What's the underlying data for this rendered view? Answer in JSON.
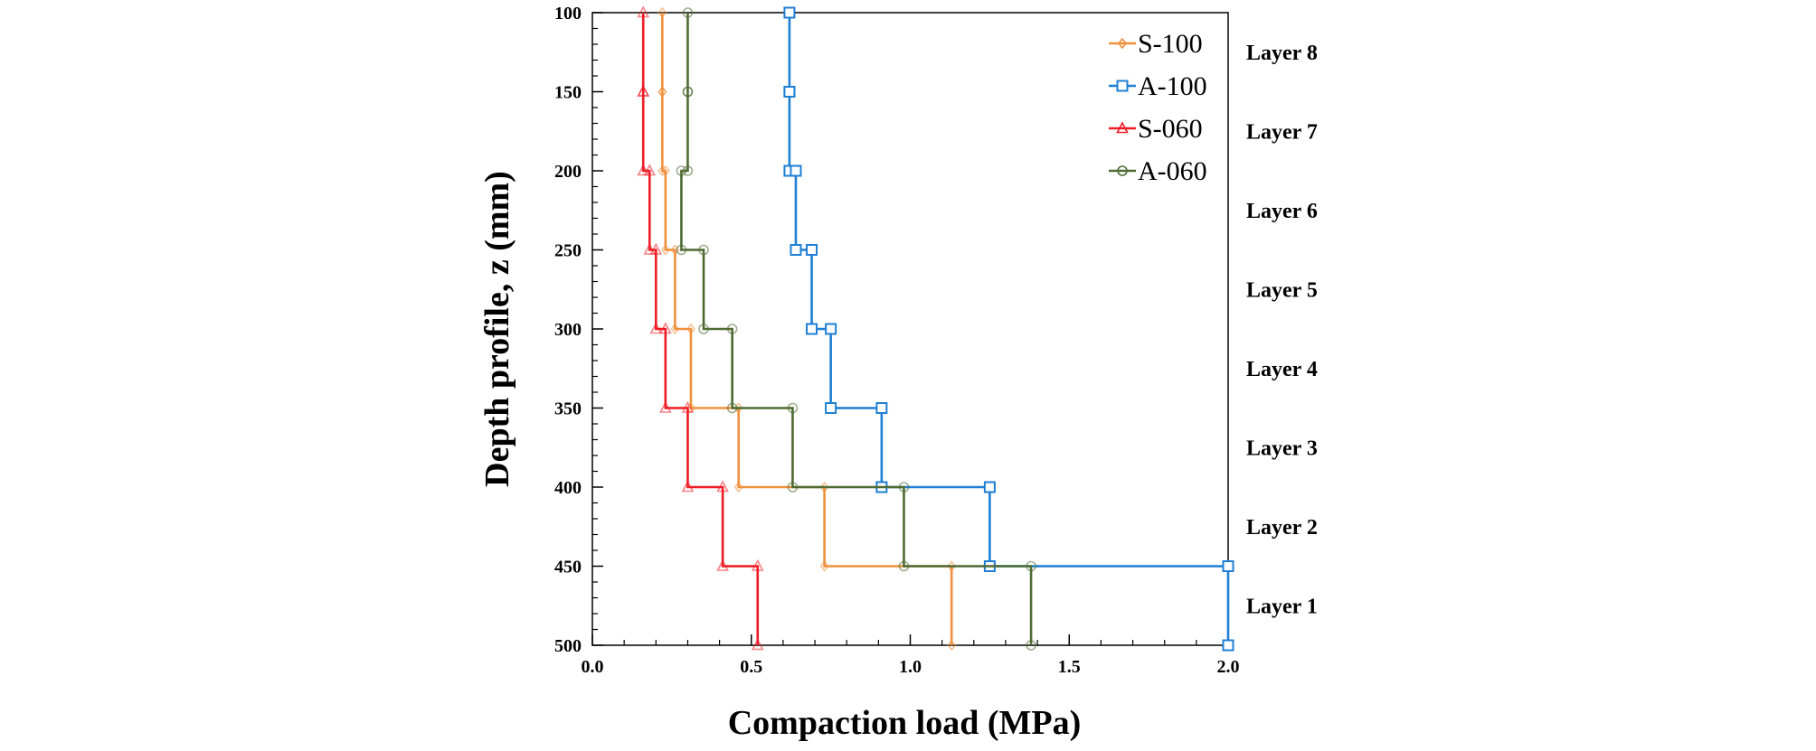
{
  "chart_data": {
    "type": "line",
    "title": "",
    "xlabel": "Compaction load (MPa)",
    "ylabel": "Depth profile, z (mm)",
    "xlim": [
      0,
      2.0
    ],
    "ylim": [
      100,
      500
    ],
    "y_inverted": true,
    "x_ticks": [
      "0.0",
      "0.5",
      "1.0",
      "1.5",
      "2.0"
    ],
    "y_ticks": [
      "100",
      "150",
      "200",
      "250",
      "300",
      "350",
      "400",
      "450",
      "500"
    ],
    "grid": false,
    "legend_position": "top-right",
    "layer_labels": [
      {
        "label": "Layer 8",
        "depth": 125
      },
      {
        "label": "Layer 7",
        "depth": 175
      },
      {
        "label": "Layer 6",
        "depth": 225
      },
      {
        "label": "Layer 5",
        "depth": 275
      },
      {
        "label": "Layer 4",
        "depth": 325
      },
      {
        "label": "Layer 3",
        "depth": 375
      },
      {
        "label": "Layer 2",
        "depth": 425
      },
      {
        "label": "Layer 1",
        "depth": 475
      }
    ],
    "series": [
      {
        "name": "S-100",
        "color": "#f0913e",
        "marker": "diamond",
        "layer_loads": [
          0.22,
          0.22,
          0.23,
          0.26,
          0.31,
          0.46,
          0.73,
          1.13
        ]
      },
      {
        "name": "A-100",
        "color": "#1f7fd4",
        "marker": "square",
        "layer_loads": [
          0.62,
          0.62,
          0.64,
          0.69,
          0.75,
          0.91,
          1.25,
          2.0
        ]
      },
      {
        "name": "S-060",
        "color": "#ee1c24",
        "marker": "triangle",
        "layer_loads": [
          0.16,
          0.16,
          0.18,
          0.2,
          0.23,
          0.3,
          0.41,
          0.52
        ]
      },
      {
        "name": "A-060",
        "color": "#4f6b32",
        "marker": "circle",
        "layer_loads": [
          0.3,
          0.3,
          0.28,
          0.35,
          0.44,
          0.63,
          0.98,
          1.38
        ]
      }
    ]
  }
}
